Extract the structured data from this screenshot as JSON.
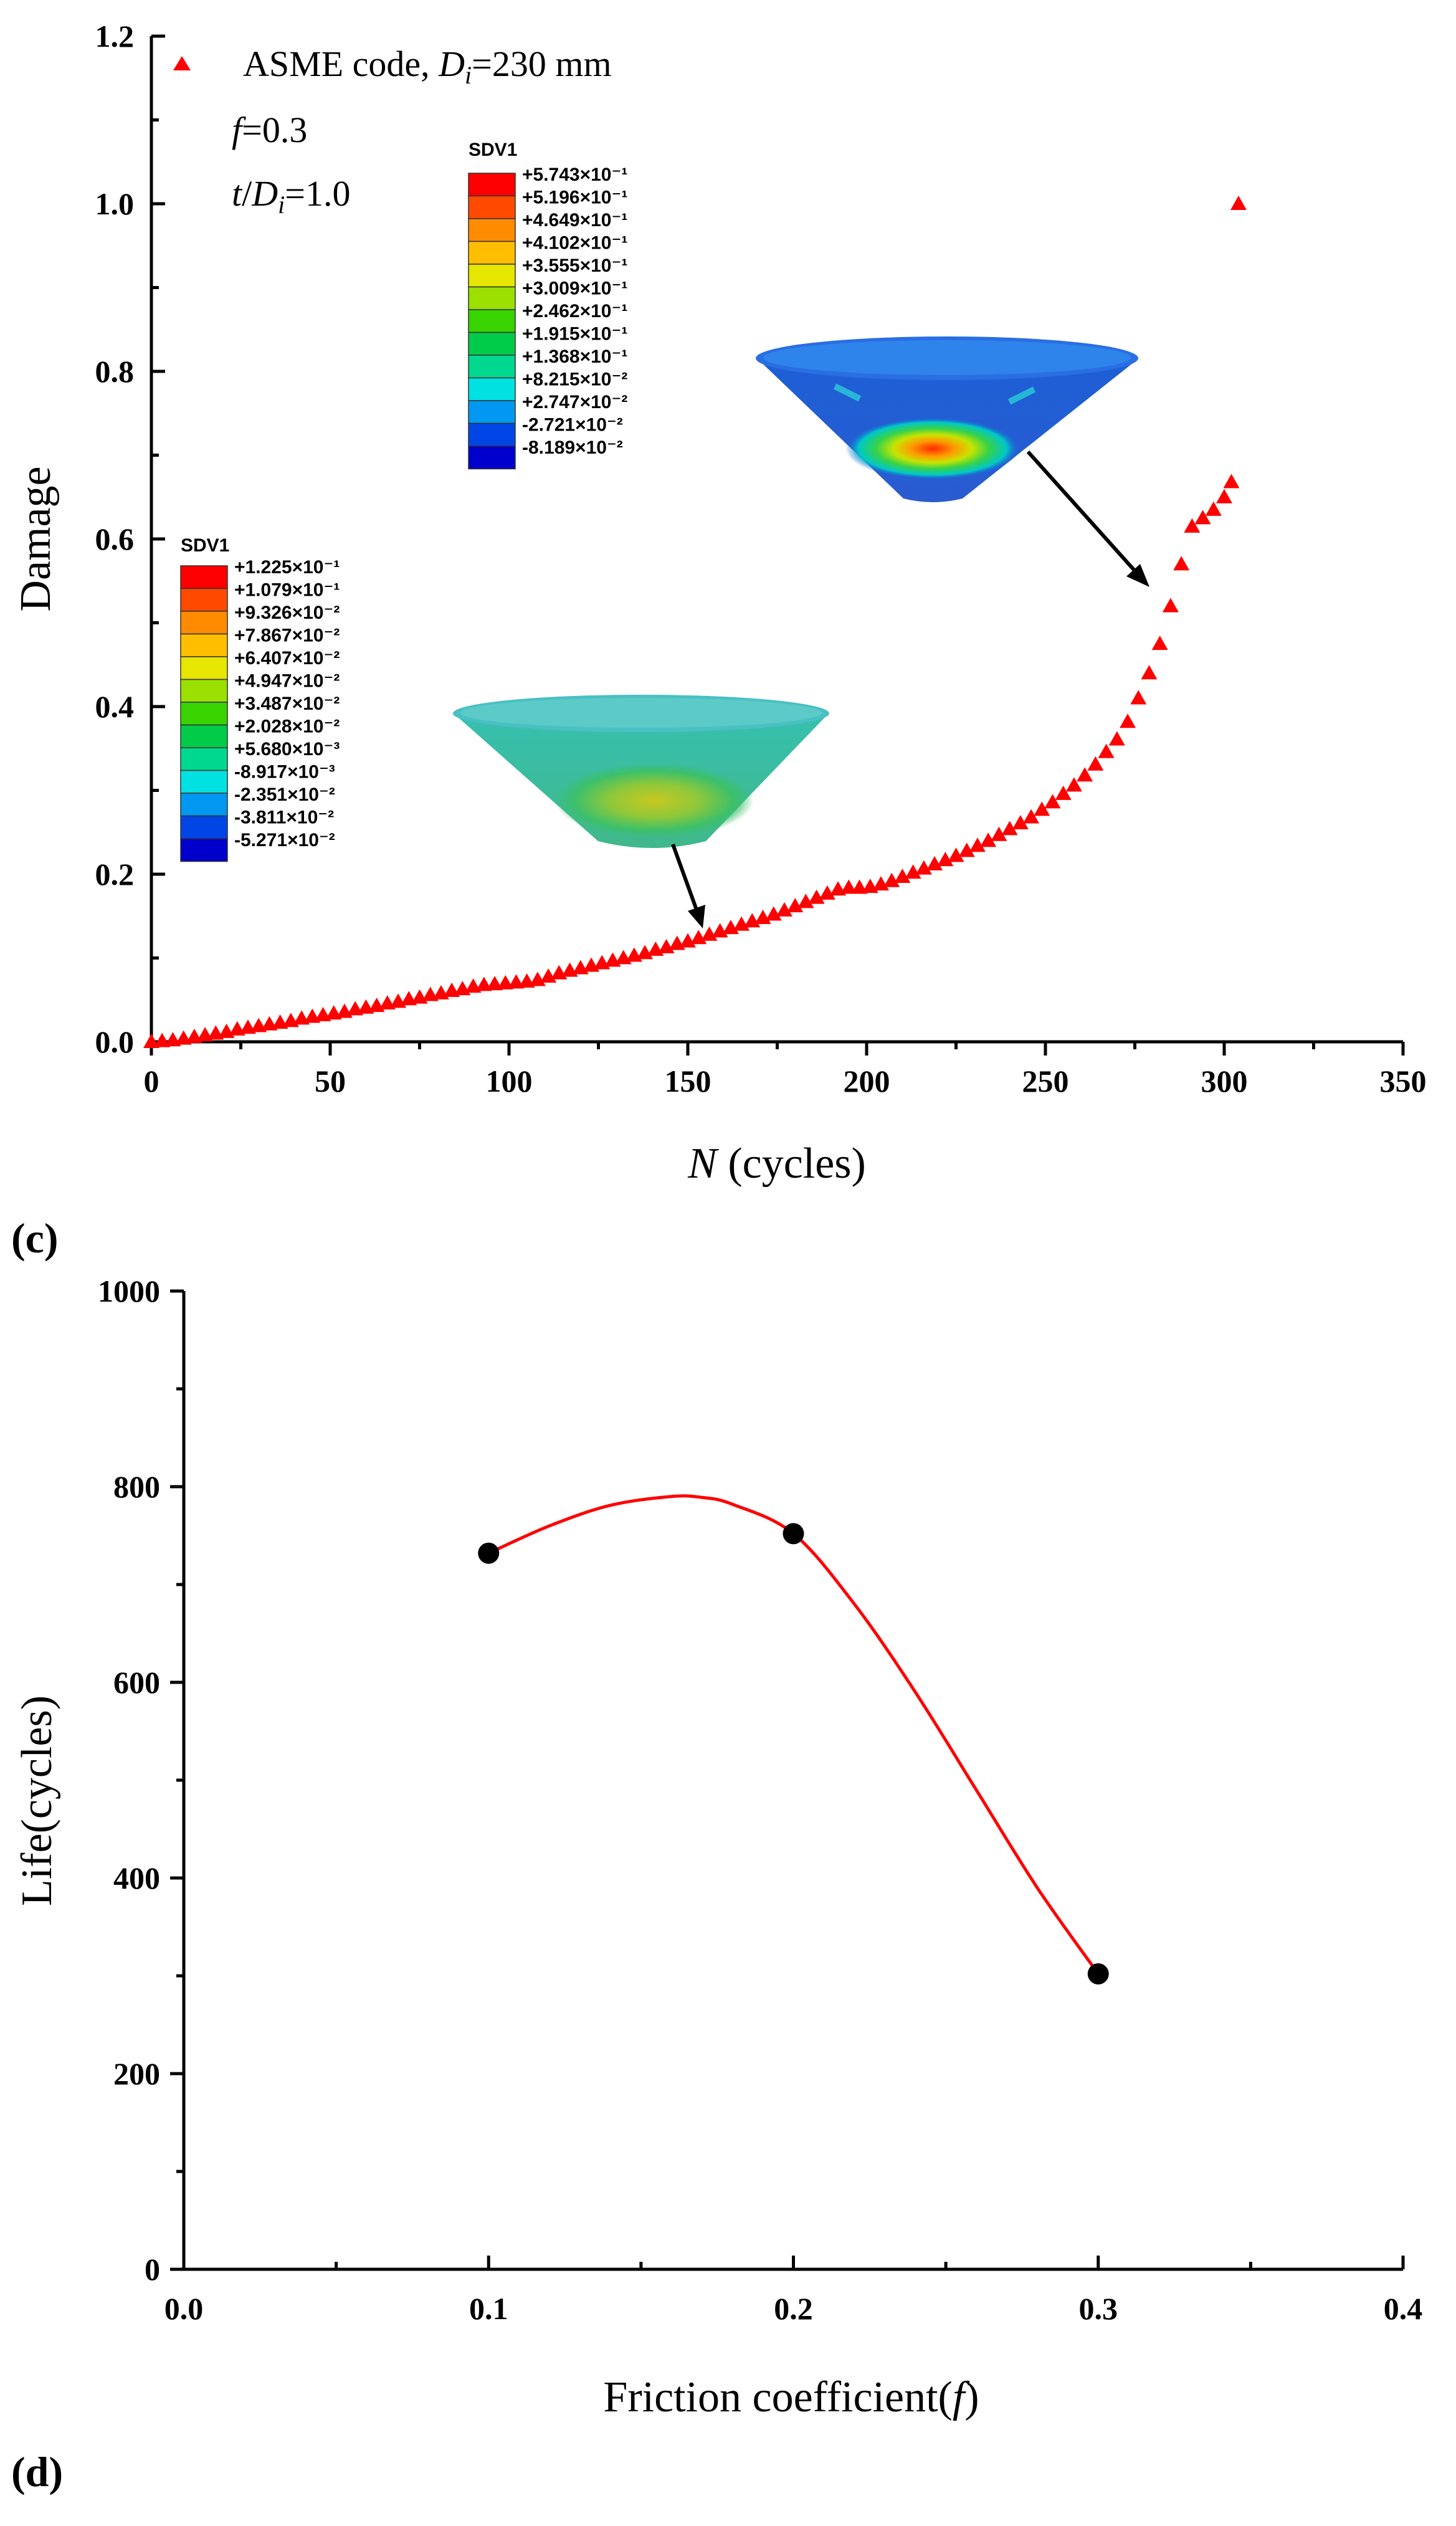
{
  "chart_data": [
    {
      "panel_label": "(c)",
      "type": "scatter",
      "xlabel_symbol": "N",
      "xlabel_rest": " (cycles)",
      "ylabel": "Damage",
      "xlim": [
        0,
        350
      ],
      "ylim": [
        0,
        1.2
      ],
      "xticks": [
        0,
        50,
        100,
        150,
        200,
        250,
        300,
        350
      ],
      "yticks": [
        0.0,
        0.2,
        0.4,
        0.6,
        0.8,
        1.0,
        1.2
      ],
      "ytick_labels": [
        "0.0",
        "0.2",
        "0.4",
        "0.6",
        "0.8",
        "1.0",
        "1.2"
      ],
      "legend": {
        "label_prefix": "ASME code, ",
        "label_symbol": "D",
        "label_sub": "i",
        "label_suffix": "=230 mm"
      },
      "annotation": {
        "f_symbol": "f",
        "f_value": "=0.3",
        "t_symbol": "t",
        "t_slash": "/",
        "t_D": "D",
        "t_sub": "i",
        "t_value": "=1.0"
      },
      "marker_color": "#ff0000",
      "series": [
        {
          "name": "ASME code, Di=230 mm",
          "x": [
            0,
            3,
            6,
            9,
            12,
            15,
            18,
            21,
            24,
            27,
            30,
            33,
            36,
            39,
            42,
            45,
            48,
            51,
            54,
            57,
            60,
            63,
            66,
            69,
            72,
            75,
            78,
            81,
            84,
            87,
            90,
            93,
            96,
            99,
            102,
            105,
            108,
            111,
            114,
            117,
            120,
            123,
            126,
            129,
            132,
            135,
            138,
            141,
            144,
            147,
            150,
            153,
            156,
            159,
            162,
            165,
            168,
            171,
            174,
            177,
            180,
            183,
            186,
            189,
            192,
            195,
            198,
            201,
            204,
            207,
            210,
            213,
            216,
            219,
            222,
            225,
            228,
            231,
            234,
            237,
            240,
            243,
            246,
            249,
            252,
            255,
            258,
            261,
            264,
            267,
            270,
            273,
            276,
            279,
            282,
            285,
            288,
            291,
            294,
            297,
            300,
            302,
            304
          ],
          "y": [
            0,
            0.001,
            0.002,
            0.004,
            0.006,
            0.008,
            0.01,
            0.012,
            0.015,
            0.017,
            0.019,
            0.021,
            0.023,
            0.025,
            0.028,
            0.03,
            0.032,
            0.034,
            0.036,
            0.039,
            0.041,
            0.043,
            0.046,
            0.048,
            0.051,
            0.053,
            0.056,
            0.058,
            0.061,
            0.063,
            0.066,
            0.068,
            0.069,
            0.07,
            0.071,
            0.072,
            0.074,
            0.078,
            0.082,
            0.085,
            0.088,
            0.091,
            0.094,
            0.097,
            0.1,
            0.103,
            0.106,
            0.11,
            0.113,
            0.117,
            0.12,
            0.124,
            0.128,
            0.132,
            0.136,
            0.14,
            0.144,
            0.148,
            0.152,
            0.157,
            0.162,
            0.167,
            0.172,
            0.177,
            0.182,
            0.184,
            0.184,
            0.185,
            0.188,
            0.192,
            0.197,
            0.202,
            0.207,
            0.212,
            0.217,
            0.222,
            0.228,
            0.234,
            0.24,
            0.247,
            0.254,
            0.261,
            0.268,
            0.277,
            0.286,
            0.296,
            0.306,
            0.318,
            0.331,
            0.346,
            0.361,
            0.382,
            0.41,
            0.44,
            0.475,
            0.52,
            0.57,
            0.615,
            0.625,
            0.635,
            0.65,
            0.668,
            1.0
          ]
        }
      ],
      "insets": [
        {
          "title": "SDV1",
          "labels": [
            "+5.743×10⁻¹",
            "+5.196×10⁻¹",
            "+4.649×10⁻¹",
            "+4.102×10⁻¹",
            "+3.555×10⁻¹",
            "+3.009×10⁻¹",
            "+2.462×10⁻¹",
            "+1.915×10⁻¹",
            "+1.368×10⁻¹",
            "+8.215×10⁻²",
            "+2.747×10⁻²",
            "-2.721×10⁻²",
            "-8.189×10⁻²"
          ],
          "colors": [
            "#ff0000",
            "#ff4a00",
            "#ff8c00",
            "#ffbe00",
            "#e6e600",
            "#9be000",
            "#39d400",
            "#00cc4a",
            "#00d890",
            "#00e2e2",
            "#0098f0",
            "#0046e6",
            "#0000cc"
          ],
          "arrow_target_x": 284,
          "arrow_target_y": 0.52
        },
        {
          "title": "SDV1",
          "labels": [
            "+1.225×10⁻¹",
            "+1.079×10⁻¹",
            "+9.326×10⁻²",
            "+7.867×10⁻²",
            "+6.407×10⁻²",
            "+4.947×10⁻²",
            "+3.487×10⁻²",
            "+2.028×10⁻²",
            "+5.680×10⁻³",
            "-8.917×10⁻³",
            "-2.351×10⁻²",
            "-3.811×10⁻²",
            "-5.271×10⁻²"
          ],
          "colors": [
            "#ff0000",
            "#ff4a00",
            "#ff8c00",
            "#ffbe00",
            "#e6e600",
            "#9be000",
            "#39d400",
            "#00cc4a",
            "#00d890",
            "#00e2e2",
            "#0098f0",
            "#0046e6",
            "#0000cc"
          ],
          "arrow_target_x": 157,
          "arrow_target_y": 0.13
        }
      ]
    },
    {
      "panel_label": "(d)",
      "type": "scatter",
      "xlabel_prefix": "Friction coefficient(",
      "xlabel_symbol": "f",
      "xlabel_suffix": ")",
      "ylabel": "Life(cycles)",
      "xlim": [
        0.0,
        0.4
      ],
      "ylim": [
        0,
        1000
      ],
      "xticks": [
        0.0,
        0.1,
        0.2,
        0.3,
        0.4
      ],
      "xtick_labels": [
        "0.0",
        "0.1",
        "0.2",
        "0.3",
        "0.4"
      ],
      "yticks": [
        0,
        200,
        400,
        600,
        800,
        1000
      ],
      "ytick_labels": [
        "0",
        "200",
        "400",
        "600",
        "800",
        "1000"
      ],
      "marker_color": "#000000",
      "curve_color": "#ff0000",
      "x": [
        0.1,
        0.2,
        0.3
      ],
      "y": [
        732,
        752,
        302
      ],
      "fit_curve": {
        "x": [
          0.1,
          0.12,
          0.14,
          0.16,
          0.17,
          0.18,
          0.2,
          0.22,
          0.24,
          0.26,
          0.28,
          0.3
        ],
        "y": [
          732,
          760,
          781,
          790,
          789,
          782,
          752,
          680,
          590,
          490,
          390,
          302
        ]
      }
    }
  ]
}
